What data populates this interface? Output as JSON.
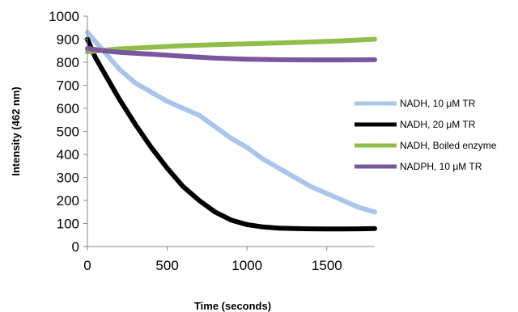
{
  "chart_data": {
    "type": "line",
    "title": "",
    "xlabel": "Time (seconds)",
    "ylabel": "Intensity (462 nm)",
    "xlim": [
      0,
      1800
    ],
    "ylim": [
      0,
      1000
    ],
    "xticks": [
      0,
      500,
      1000,
      1500
    ],
    "yticks": [
      0,
      100,
      200,
      300,
      400,
      500,
      600,
      700,
      800,
      900,
      1000
    ],
    "grid": false,
    "legend_position": "right",
    "series": [
      {
        "name": "NADH, 10 μM TR",
        "color": "#a9c6ea",
        "x": [
          0,
          100,
          200,
          300,
          400,
          500,
          600,
          700,
          800,
          900,
          1000,
          1100,
          1200,
          1300,
          1400,
          1500,
          1600,
          1700,
          1800
        ],
        "y": [
          930,
          850,
          770,
          710,
          670,
          630,
          600,
          570,
          520,
          470,
          430,
          380,
          340,
          300,
          260,
          230,
          200,
          170,
          150
        ]
      },
      {
        "name": "NADH, 20 μM TR",
        "color": "#000000",
        "x": [
          0,
          50,
          100,
          200,
          300,
          400,
          500,
          600,
          700,
          800,
          900,
          1000,
          1100,
          1200,
          1300,
          1400,
          1500,
          1600,
          1700,
          1800
        ],
        "y": [
          900,
          820,
          760,
          640,
          530,
          430,
          340,
          260,
          200,
          150,
          115,
          95,
          85,
          80,
          78,
          77,
          76,
          76,
          77,
          78
        ]
      },
      {
        "name": "NADH, Boiled enzyme",
        "color": "#8fbf4a",
        "x": [
          0,
          100,
          200,
          400,
          600,
          800,
          1000,
          1200,
          1400,
          1600,
          1800
        ],
        "y": [
          845,
          852,
          858,
          865,
          872,
          876,
          880,
          884,
          888,
          893,
          900
        ]
      },
      {
        "name": "NADPH, 10 μM TR",
        "color": "#7a55a0",
        "x": [
          0,
          100,
          200,
          400,
          600,
          800,
          1000,
          1200,
          1400,
          1600,
          1800
        ],
        "y": [
          860,
          850,
          843,
          835,
          826,
          818,
          813,
          811,
          810,
          810,
          811
        ]
      }
    ]
  }
}
